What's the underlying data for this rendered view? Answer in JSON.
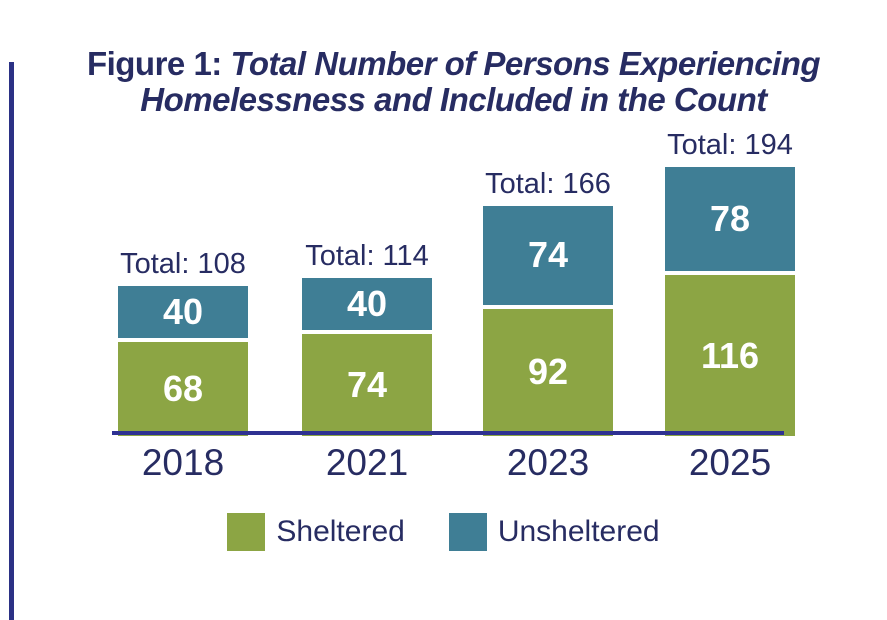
{
  "title": {
    "prefix": "Figure 1: ",
    "line1": "Total Number of Persons Experiencing",
    "line2": "Homelessness and Included in the Count",
    "color": "#272c62"
  },
  "decor": {
    "left_accent_color": "#2b3185"
  },
  "chart_data": {
    "type": "bar",
    "stacked": true,
    "categories": [
      "2018",
      "2021",
      "2023",
      "2025"
    ],
    "series": [
      {
        "name": "Sheltered",
        "color": "#8ca544",
        "values": [
          68,
          74,
          92,
          116
        ]
      },
      {
        "name": "Unsheltered",
        "color": "#3f7e95",
        "values": [
          40,
          40,
          74,
          78
        ]
      }
    ],
    "totals": [
      108,
      114,
      166,
      194
    ],
    "total_labels": [
      "Total: 108",
      "Total: 114",
      "Total: 166",
      "Total: 194"
    ],
    "value_label_color": "#ffffff",
    "text_color": "#272c62",
    "axis_color": "#2e3192",
    "grid": false,
    "ylim": [
      0,
      200
    ],
    "legend_position": "bottom"
  },
  "legend": {
    "items": [
      {
        "label": "Sheltered",
        "color": "#8ca544"
      },
      {
        "label": "Unsheltered",
        "color": "#3f7e95"
      }
    ]
  }
}
